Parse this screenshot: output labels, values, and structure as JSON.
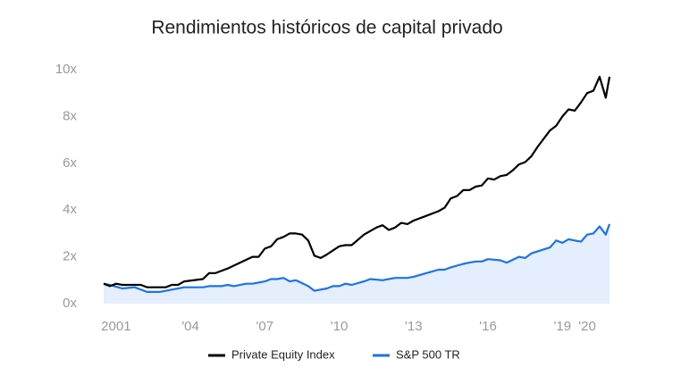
{
  "chart_data": {
    "type": "line",
    "title": "Rendimientos históricos de capital privado",
    "xlim": [
      2000.5,
      2020.9
    ],
    "xticks": [
      2001,
      {
        "value": 2004,
        "label": "'04"
      },
      {
        "value": 2007,
        "label": "'07"
      },
      {
        "value": 2010,
        "label": "'10"
      },
      {
        "value": 2013,
        "label": "'13"
      },
      {
        "value": 2016,
        "label": "'16"
      },
      {
        "value": 2019,
        "label": "'19"
      },
      {
        "value": 2020,
        "label": "'20"
      }
    ],
    "ylim": [
      0,
      10
    ],
    "yticks": [
      {
        "value": 0,
        "label": "0x"
      },
      {
        "value": 2,
        "label": "2x"
      },
      {
        "value": 4,
        "label": "4x"
      },
      {
        "value": 6,
        "label": "6x"
      },
      {
        "value": 8,
        "label": "8x"
      },
      {
        "value": 10,
        "label": "10x"
      }
    ],
    "legend": "bottom",
    "series": [
      {
        "name": "Private Equity Index",
        "color": "#000000",
        "area": false,
        "x": [
          2000.5,
          2000.75,
          2001,
          2001.25,
          2002,
          2002.25,
          2003,
          2003.25,
          2003.5,
          2003.75,
          2004.5,
          2004.75,
          2005,
          2005.5,
          2006,
          2006.5,
          2006.75,
          2007,
          2007.25,
          2007.5,
          2007.75,
          2008,
          2008.25,
          2008.5,
          2008.75,
          2009,
          2009.25,
          2009.5,
          2010,
          2010.25,
          2010.5,
          2011,
          2011.5,
          2011.75,
          2012,
          2012.25,
          2012.5,
          2012.75,
          2013,
          2013.5,
          2014,
          2014.25,
          2014.5,
          2014.75,
          2015,
          2015.25,
          2015.5,
          2015.75,
          2016,
          2016.25,
          2016.5,
          2016.75,
          2017,
          2017.25,
          2017.5,
          2017.75,
          2018,
          2018.5,
          2018.75,
          2019,
          2019.25,
          2019.5,
          2019.75,
          2020,
          2020.25,
          2020.5,
          2020.75,
          2020.9
        ],
        "values": [
          0.85,
          0.75,
          0.85,
          0.8,
          0.8,
          0.7,
          0.7,
          0.8,
          0.8,
          0.95,
          1.05,
          1.3,
          1.3,
          1.5,
          1.75,
          2.0,
          2.0,
          2.35,
          2.45,
          2.75,
          2.85,
          3.0,
          3.0,
          2.95,
          2.7,
          2.05,
          1.95,
          2.1,
          2.45,
          2.5,
          2.5,
          2.95,
          3.25,
          3.35,
          3.15,
          3.25,
          3.45,
          3.4,
          3.55,
          3.75,
          3.95,
          4.1,
          4.5,
          4.6,
          4.85,
          4.85,
          5.0,
          5.05,
          5.35,
          5.3,
          5.45,
          5.5,
          5.7,
          5.95,
          6.05,
          6.3,
          6.7,
          7.4,
          7.6,
          8.0,
          8.3,
          8.25,
          8.6,
          9.0,
          9.1,
          9.7,
          8.8,
          9.7
        ]
      },
      {
        "name": "S&P 500 TR",
        "color": "#1a73e8",
        "area": true,
        "area_color": "#e4eefc",
        "x": [
          2000.5,
          2000.75,
          2001.25,
          2001.75,
          2002.25,
          2002.75,
          2003.25,
          2003.75,
          2004.5,
          2004.75,
          2005.25,
          2005.5,
          2005.75,
          2006.25,
          2006.5,
          2007,
          2007.25,
          2007.5,
          2007.75,
          2008,
          2008.25,
          2008.75,
          2009,
          2009.5,
          2009.75,
          2010,
          2010.25,
          2010.5,
          2011,
          2011.25,
          2011.75,
          2012.25,
          2012.75,
          2013,
          2013.5,
          2014,
          2014.25,
          2014.5,
          2015,
          2015.25,
          2015.5,
          2015.75,
          2016,
          2016.5,
          2016.75,
          2017.25,
          2017.5,
          2017.75,
          2018.5,
          2018.75,
          2019,
          2019.25,
          2019.5,
          2019.75,
          2020,
          2020.25,
          2020.5,
          2020.75,
          2020.9
        ],
        "values": [
          0.85,
          0.8,
          0.65,
          0.7,
          0.5,
          0.5,
          0.6,
          0.7,
          0.7,
          0.75,
          0.75,
          0.8,
          0.75,
          0.85,
          0.85,
          0.95,
          1.05,
          1.05,
          1.1,
          0.95,
          1.0,
          0.75,
          0.55,
          0.65,
          0.75,
          0.75,
          0.85,
          0.8,
          0.95,
          1.05,
          1.0,
          1.1,
          1.1,
          1.15,
          1.3,
          1.45,
          1.45,
          1.55,
          1.7,
          1.75,
          1.8,
          1.8,
          1.9,
          1.85,
          1.75,
          2.0,
          1.95,
          2.15,
          2.4,
          2.7,
          2.6,
          2.75,
          2.7,
          2.65,
          2.95,
          3.0,
          3.3,
          2.95,
          3.4
        ]
      }
    ]
  }
}
